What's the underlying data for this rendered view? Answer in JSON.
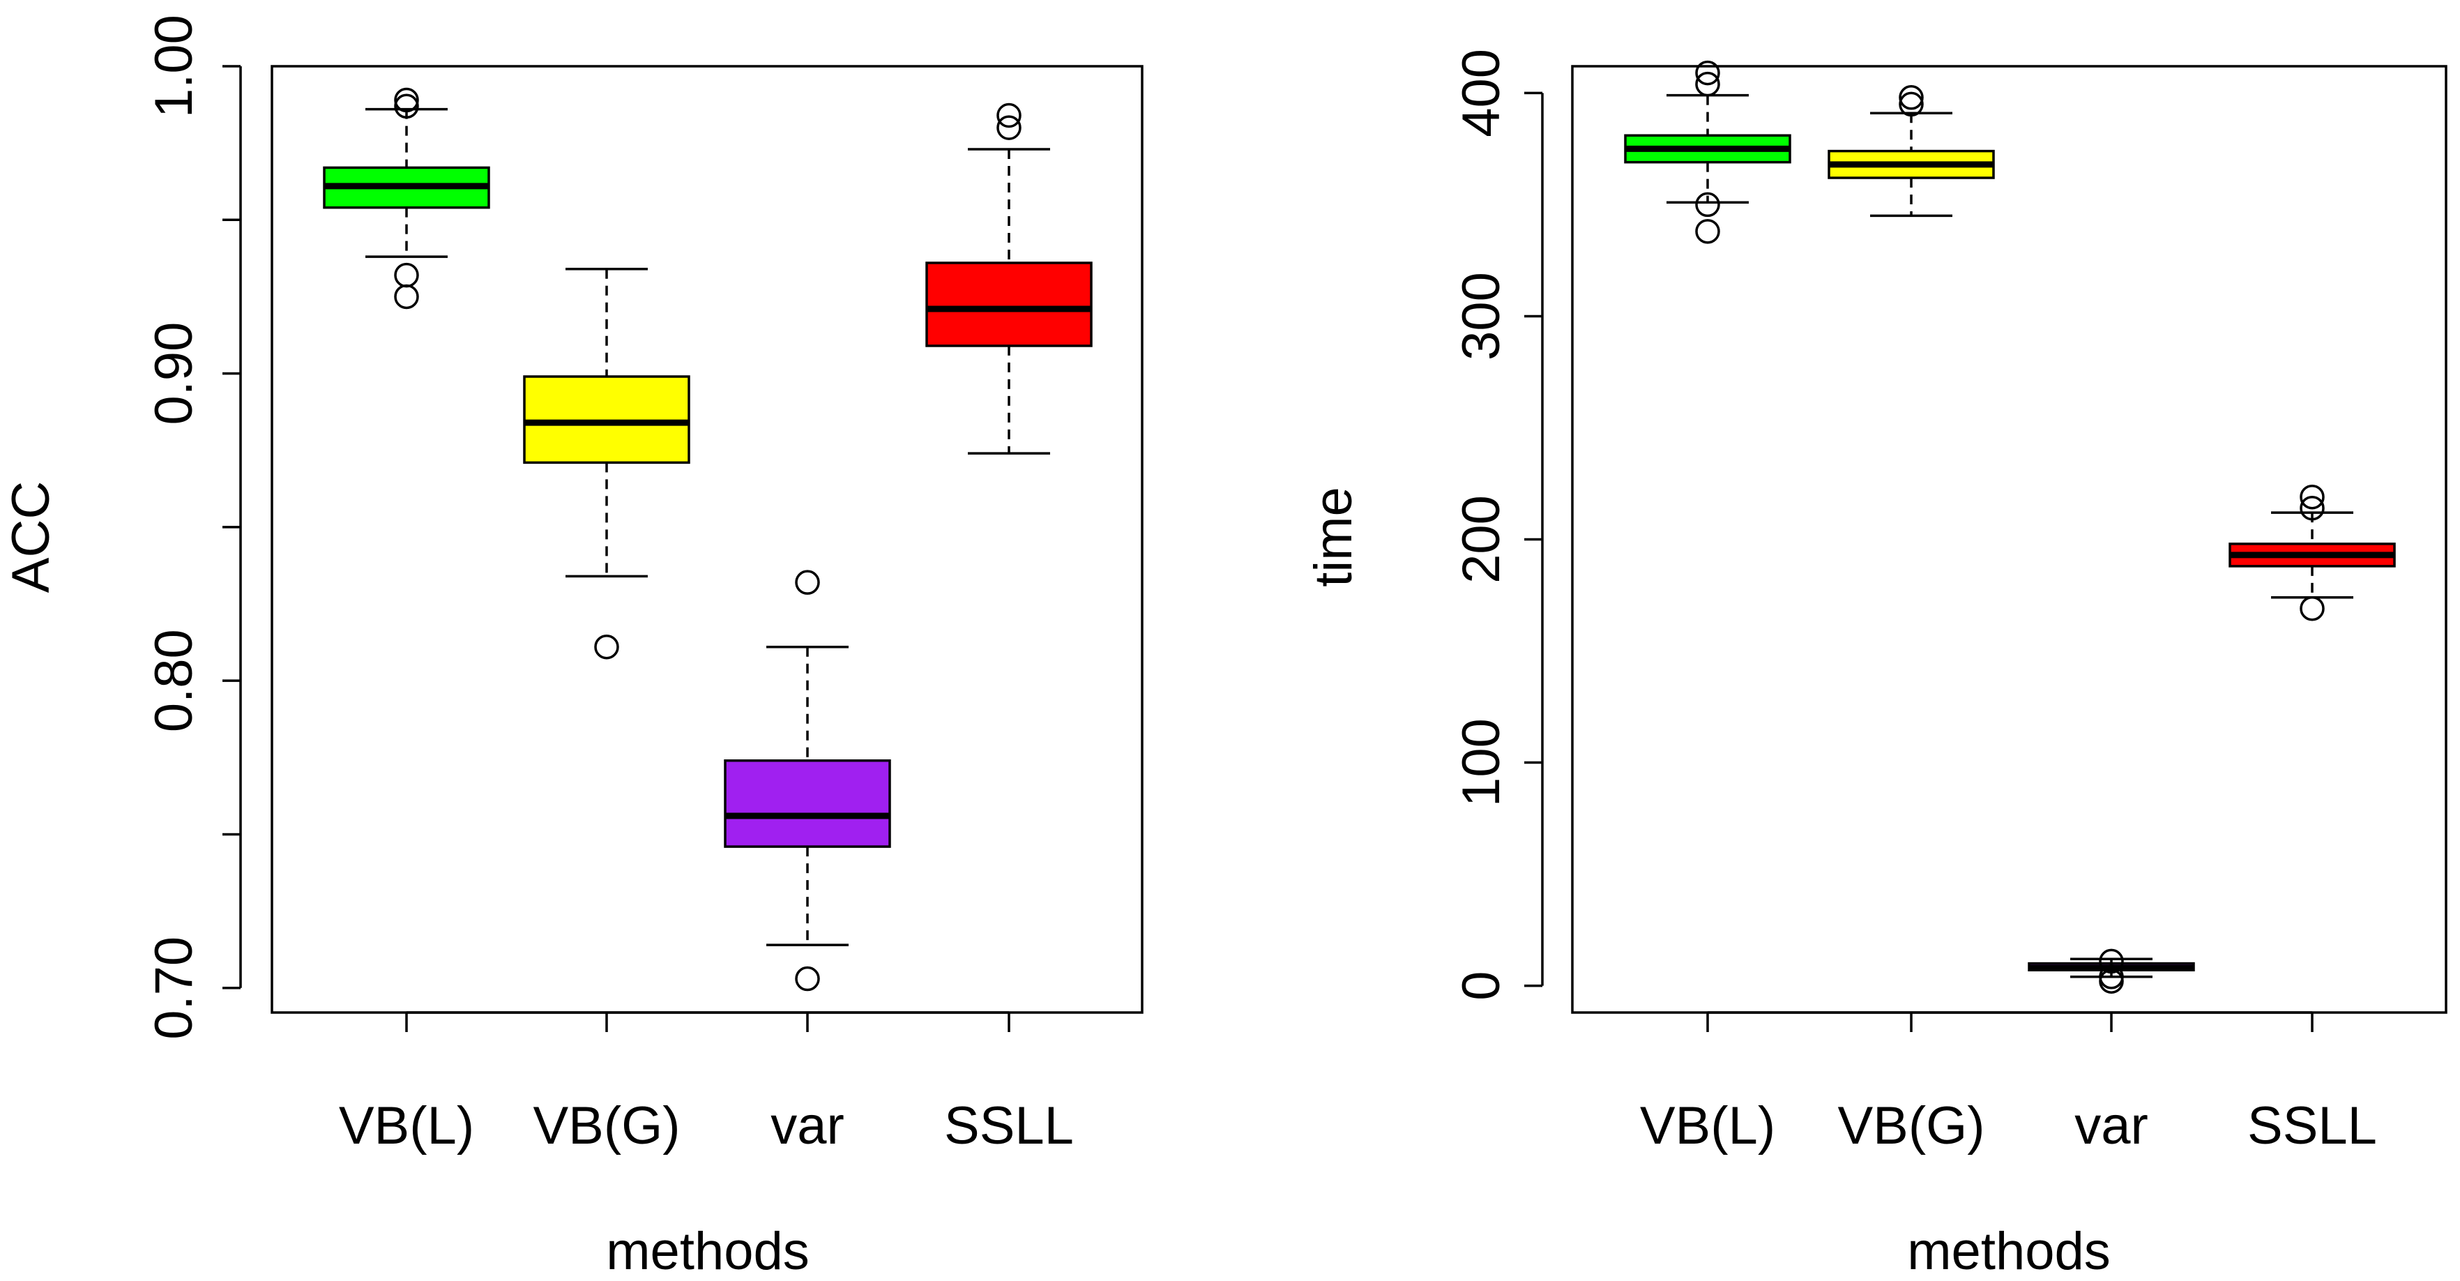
{
  "chart_data": [
    {
      "type": "boxplot",
      "xlabel": "methods",
      "ylabel": "ACC",
      "ylim": [
        0.692,
        1.0
      ],
      "y_ticks": [
        0.7,
        0.75,
        0.8,
        0.85,
        0.9,
        0.95,
        1.0
      ],
      "y_tick_labels": [
        "0.70",
        "",
        "0.80",
        "",
        "0.90",
        "",
        "1.00"
      ],
      "categories": [
        "VB(L)",
        "VB(G)",
        "var",
        "SSLL"
      ],
      "colors": [
        "#00ff00",
        "#ffff00",
        "#a020f0",
        "#ff0000"
      ],
      "boxes": [
        {
          "min": 0.938,
          "q1": 0.954,
          "median": 0.961,
          "q3": 0.967,
          "max": 0.986,
          "outliers": [
            0.987,
            0.989,
            0.932,
            0.925
          ]
        },
        {
          "min": 0.834,
          "q1": 0.871,
          "median": 0.884,
          "q3": 0.899,
          "max": 0.934,
          "outliers": [
            0.811
          ]
        },
        {
          "min": 0.714,
          "q1": 0.746,
          "median": 0.756,
          "q3": 0.774,
          "max": 0.811,
          "outliers": [
            0.832,
            0.703
          ]
        },
        {
          "min": 0.874,
          "q1": 0.909,
          "median": 0.921,
          "q3": 0.936,
          "max": 0.973,
          "outliers": [
            0.98,
            0.984
          ]
        }
      ]
    },
    {
      "type": "boxplot",
      "xlabel": "methods",
      "ylabel": "time",
      "ylim": [
        -12,
        412
      ],
      "y_ticks": [
        0,
        100,
        200,
        300,
        400
      ],
      "y_tick_labels": [
        "0",
        "100",
        "200",
        "300",
        "400"
      ],
      "categories": [
        "VB(L)",
        "VB(G)",
        "var",
        "SSLL"
      ],
      "colors": [
        "#00ff00",
        "#ffff00",
        "#a020f0",
        "#ff0000"
      ],
      "boxes": [
        {
          "min": 351,
          "q1": 369,
          "median": 375,
          "q3": 381,
          "max": 399,
          "outliers": [
            409,
            404,
            350,
            338
          ]
        },
        {
          "min": 345,
          "q1": 362,
          "median": 368,
          "q3": 374,
          "max": 391,
          "outliers": [
            398,
            395
          ]
        },
        {
          "min": 4,
          "q1": 7,
          "median": 8,
          "q3": 10,
          "max": 12,
          "outliers": [
            2,
            4,
            11
          ]
        },
        {
          "min": 174,
          "q1": 188,
          "median": 193,
          "q3": 198,
          "max": 212,
          "outliers": [
            214,
            219,
            169
          ]
        }
      ]
    }
  ]
}
